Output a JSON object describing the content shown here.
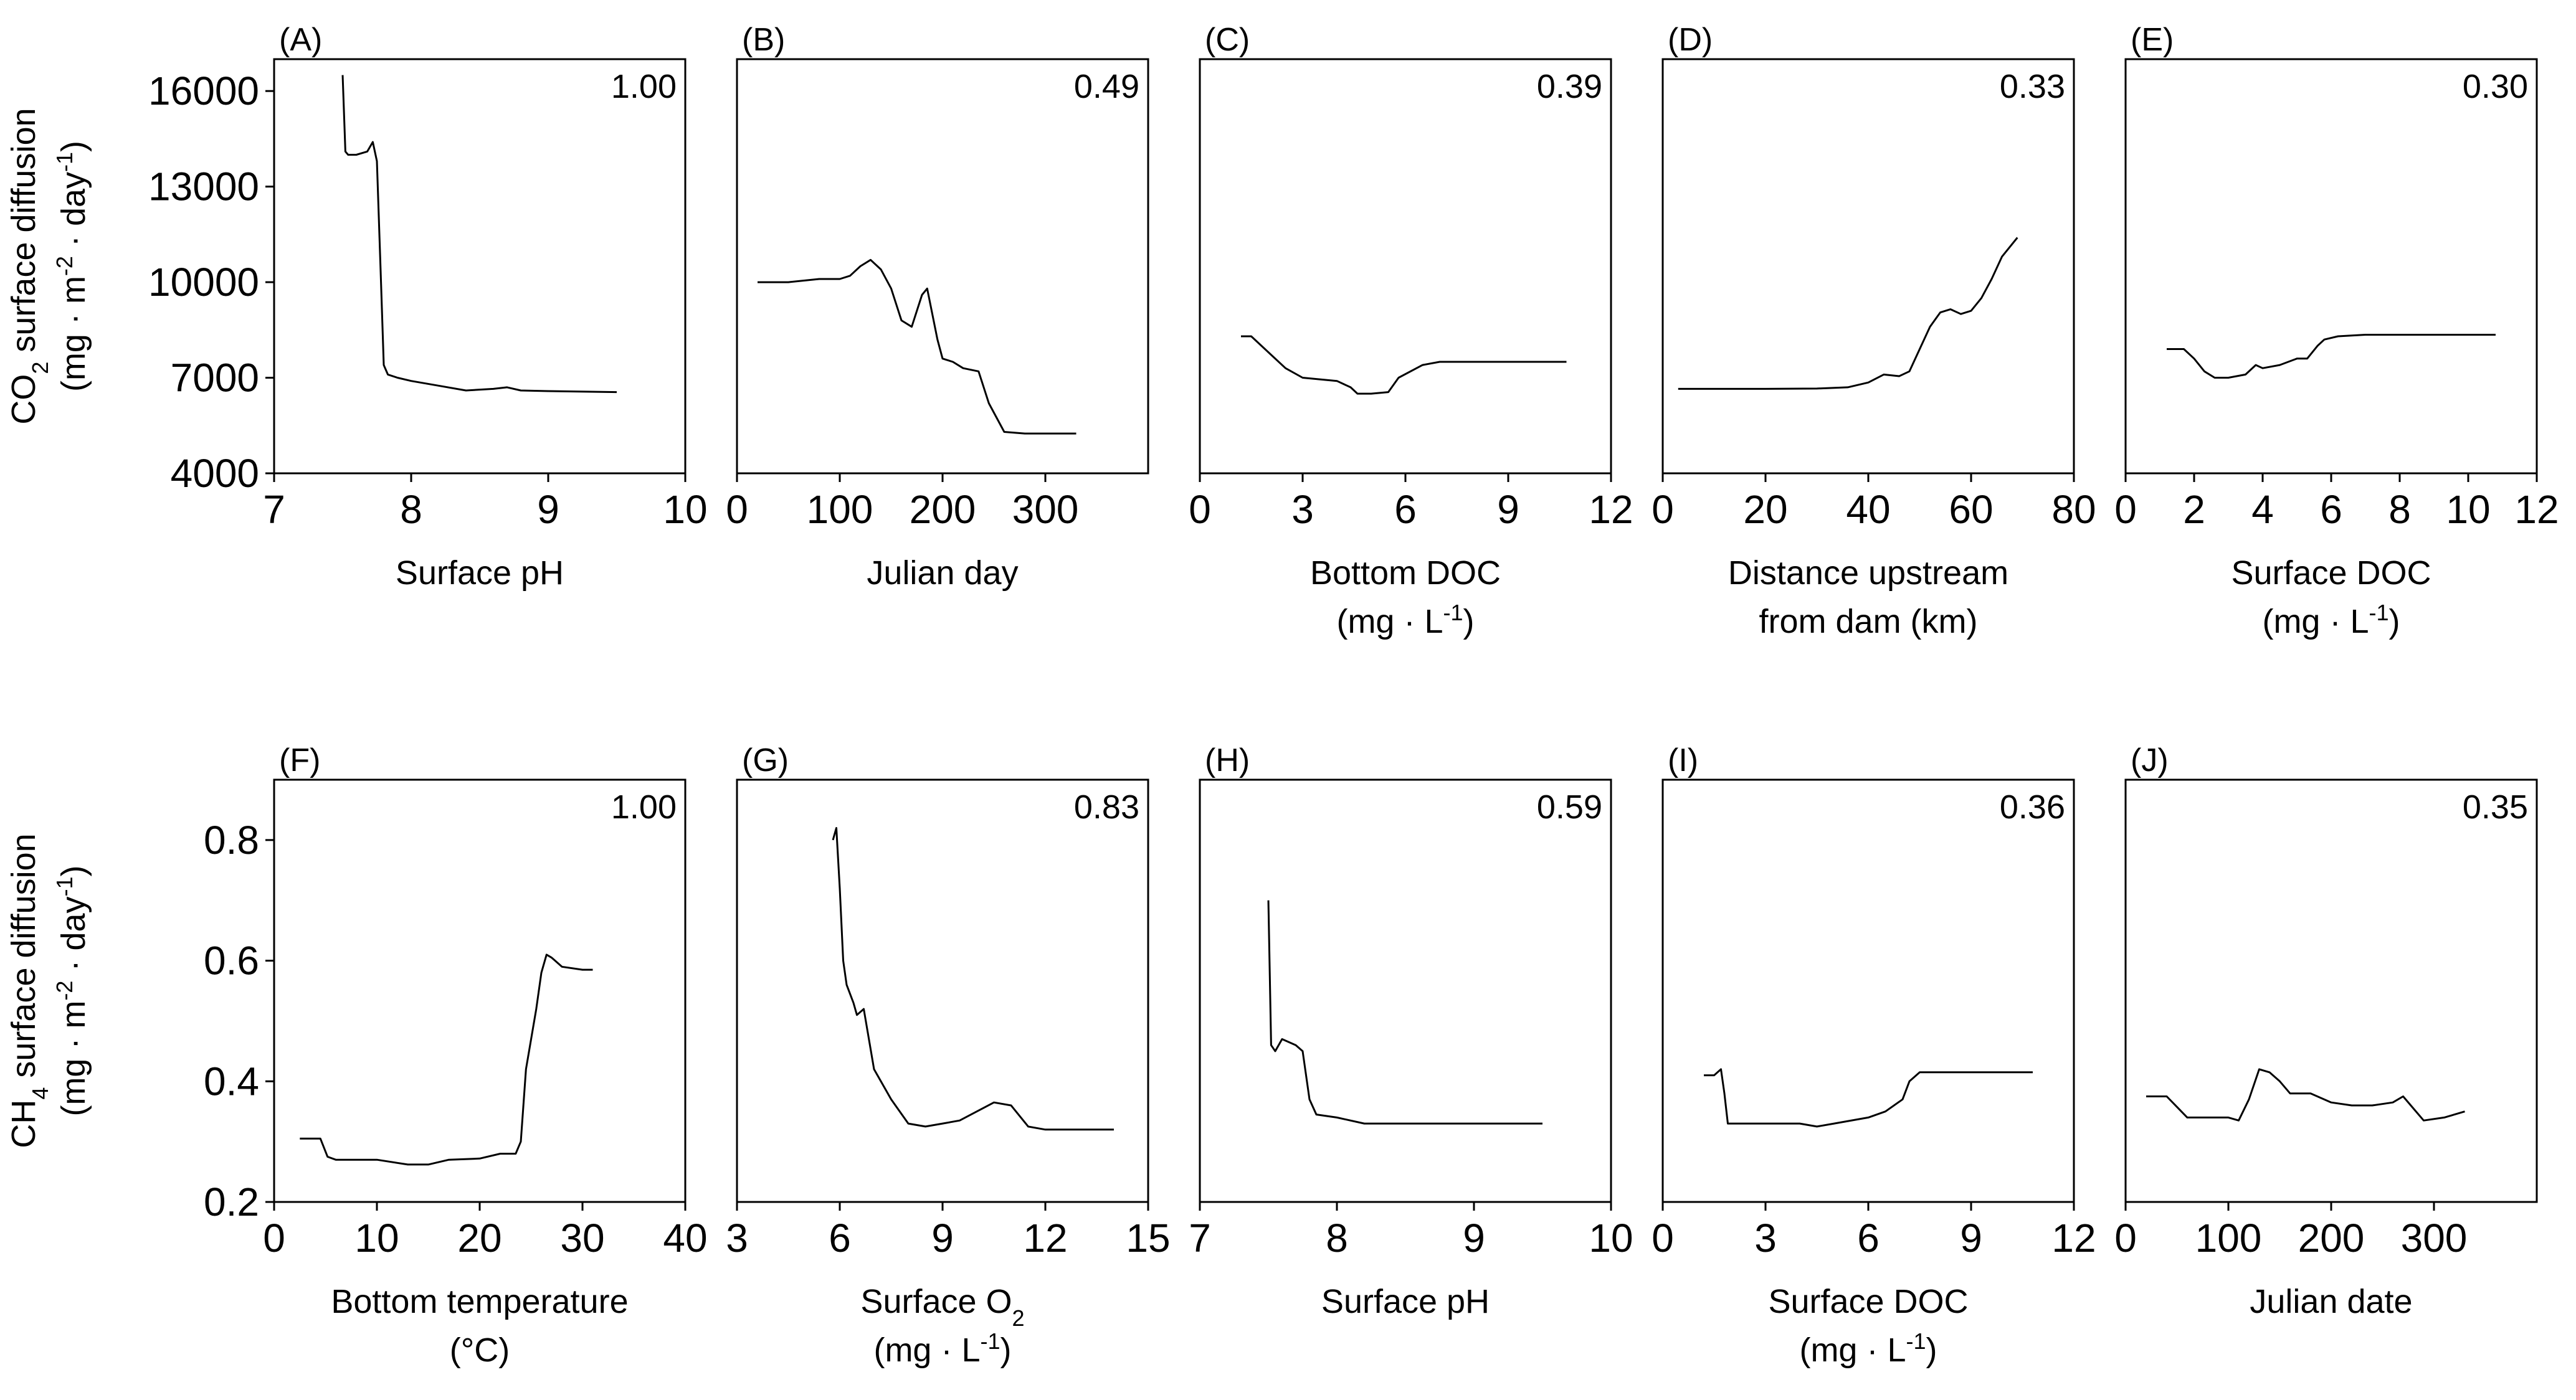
{
  "chart_data": [
    {
      "id": "A",
      "type": "line",
      "panel_label": "(A)",
      "score": "1.00",
      "xlabel": [
        "Surface pH"
      ],
      "ylabel": [
        "CO2 surface diffusion",
        "(mg · m-2 · day-1)"
      ],
      "xlim": [
        7,
        10
      ],
      "ylim": [
        4000,
        17000
      ],
      "xticks": [
        7,
        8,
        9,
        10
      ],
      "xtick_labels": [
        "7",
        "8",
        "9",
        "10"
      ],
      "yticks": [
        4000,
        7000,
        10000,
        13000,
        16000
      ],
      "ytick_labels": [
        "4000",
        "7000",
        "10000",
        "13000",
        "16000"
      ],
      "x": [
        7.5,
        7.52,
        7.54,
        7.6,
        7.68,
        7.72,
        7.75,
        7.78,
        7.8,
        7.83,
        7.9,
        8.0,
        8.2,
        8.4,
        8.6,
        8.7,
        8.8,
        9.0,
        9.5
      ],
      "y": [
        16500,
        14100,
        14000,
        14000,
        14100,
        14400,
        13800,
        10000,
        7400,
        7100,
        7000,
        6900,
        6750,
        6600,
        6650,
        6700,
        6600,
        6580,
        6550
      ]
    },
    {
      "id": "B",
      "type": "line",
      "panel_label": "(B)",
      "score": "0.49",
      "xlabel": [
        "Julian day"
      ],
      "ylabel": [],
      "xlim": [
        0,
        400
      ],
      "ylim": [
        4000,
        17000
      ],
      "xticks": [
        0,
        100,
        200,
        300
      ],
      "xtick_labels": [
        "0",
        "100",
        "200",
        "300"
      ],
      "yticks": [],
      "ytick_labels": [],
      "x": [
        20,
        50,
        80,
        100,
        110,
        120,
        130,
        140,
        150,
        160,
        170,
        180,
        185,
        195,
        200,
        210,
        220,
        235,
        245,
        260,
        280,
        330
      ],
      "y": [
        10000,
        10000,
        10100,
        10100,
        10200,
        10500,
        10700,
        10400,
        9800,
        8800,
        8600,
        9600,
        9800,
        8200,
        7600,
        7500,
        7300,
        7200,
        6200,
        5300,
        5250,
        5250
      ]
    },
    {
      "id": "C",
      "type": "line",
      "panel_label": "(C)",
      "score": "0.39",
      "xlabel": [
        "Bottom DOC",
        "(mg · L-1)"
      ],
      "ylabel": [],
      "xlim": [
        0,
        12
      ],
      "ylim": [
        4000,
        17000
      ],
      "xticks": [
        0,
        3,
        6,
        9,
        12
      ],
      "xtick_labels": [
        "0",
        "3",
        "6",
        "9",
        "12"
      ],
      "yticks": [],
      "ytick_labels": [],
      "x": [
        1.2,
        1.5,
        2.0,
        2.5,
        3.0,
        3.5,
        4.0,
        4.4,
        4.6,
        5.0,
        5.5,
        5.8,
        6.5,
        7.0,
        8.0,
        9.0,
        10.7
      ],
      "y": [
        8300,
        8300,
        7800,
        7300,
        7000,
        6950,
        6900,
        6700,
        6500,
        6500,
        6550,
        7000,
        7400,
        7500,
        7500,
        7500,
        7500
      ]
    },
    {
      "id": "D",
      "type": "line",
      "panel_label": "(D)",
      "score": "0.33",
      "xlabel": [
        "Distance upstream",
        "from dam (km)"
      ],
      "ylabel": [],
      "xlim": [
        0,
        80
      ],
      "ylim": [
        4000,
        17000
      ],
      "xticks": [
        0,
        20,
        40,
        60,
        80
      ],
      "xtick_labels": [
        "0",
        "20",
        "40",
        "60",
        "80"
      ],
      "yticks": [],
      "ytick_labels": [],
      "x": [
        3,
        10,
        20,
        30,
        36,
        40,
        43,
        46,
        48,
        50,
        52,
        54,
        56,
        58,
        60,
        62,
        64,
        66,
        69
      ],
      "y": [
        6650,
        6650,
        6650,
        6660,
        6700,
        6850,
        7100,
        7050,
        7200,
        7900,
        8600,
        9050,
        9150,
        9000,
        9100,
        9500,
        10100,
        10800,
        11400
      ]
    },
    {
      "id": "E",
      "type": "line",
      "panel_label": "(E)",
      "score": "0.30",
      "xlabel": [
        "Surface DOC",
        "(mg · L-1)"
      ],
      "ylabel": [],
      "xlim": [
        0,
        12
      ],
      "ylim": [
        4000,
        17000
      ],
      "xticks": [
        0,
        2,
        4,
        6,
        8,
        10,
        12
      ],
      "xtick_labels": [
        "0",
        "2",
        "4",
        "6",
        "8",
        "10",
        "12"
      ],
      "yticks": [],
      "ytick_labels": [],
      "x": [
        1.2,
        1.7,
        2.0,
        2.3,
        2.6,
        3.0,
        3.5,
        3.8,
        4.0,
        4.5,
        5.0,
        5.3,
        5.6,
        5.8,
        6.2,
        7.0,
        8.0,
        9.0,
        10.8
      ],
      "y": [
        7900,
        7900,
        7600,
        7200,
        7000,
        7000,
        7100,
        7400,
        7300,
        7400,
        7600,
        7600,
        8000,
        8200,
        8300,
        8350,
        8350,
        8350,
        8350
      ]
    },
    {
      "id": "F",
      "type": "line",
      "panel_label": "(F)",
      "score": "1.00",
      "xlabel": [
        "Bottom temperature",
        "(°C)"
      ],
      "ylabel": [
        "CH4 surface diffusion",
        "(mg · m-2 · day-1)"
      ],
      "xlim": [
        0,
        40
      ],
      "ylim": [
        0.2,
        0.9
      ],
      "xticks": [
        0,
        10,
        20,
        30,
        40
      ],
      "xtick_labels": [
        "0",
        "10",
        "20",
        "30",
        "40"
      ],
      "yticks": [
        0.2,
        0.4,
        0.6,
        0.8
      ],
      "ytick_labels": [
        "0.2",
        "0.4",
        "0.6",
        "0.8"
      ],
      "x": [
        2.5,
        4.5,
        5.2,
        6,
        10,
        13,
        15,
        17,
        20,
        22,
        23.5,
        24,
        24.5,
        25.5,
        26,
        26.5,
        27,
        28,
        30,
        31
      ],
      "y": [
        0.305,
        0.305,
        0.275,
        0.27,
        0.27,
        0.262,
        0.262,
        0.27,
        0.272,
        0.28,
        0.28,
        0.3,
        0.42,
        0.52,
        0.58,
        0.61,
        0.605,
        0.59,
        0.585,
        0.585
      ]
    },
    {
      "id": "G",
      "type": "line",
      "panel_label": "(G)",
      "score": "0.83",
      "xlabel": [
        "Surface O2",
        "(mg · L-1)"
      ],
      "ylabel": [],
      "xlim": [
        3,
        15
      ],
      "ylim": [
        0.2,
        0.9
      ],
      "xticks": [
        3,
        6,
        9,
        12,
        15
      ],
      "xtick_labels": [
        "3",
        "6",
        "9",
        "12",
        "15"
      ],
      "yticks": [],
      "ytick_labels": [],
      "x": [
        5.8,
        5.9,
        6.0,
        6.1,
        6.2,
        6.4,
        6.5,
        6.7,
        7.0,
        7.5,
        8.0,
        8.5,
        9.0,
        9.5,
        10.0,
        10.5,
        11.0,
        11.5,
        12.0,
        14.0
      ],
      "y": [
        0.8,
        0.82,
        0.72,
        0.6,
        0.56,
        0.53,
        0.51,
        0.52,
        0.42,
        0.37,
        0.33,
        0.325,
        0.33,
        0.335,
        0.35,
        0.365,
        0.36,
        0.325,
        0.32,
        0.32
      ]
    },
    {
      "id": "H",
      "type": "line",
      "panel_label": "(H)",
      "score": "0.59",
      "xlabel": [
        "Surface pH"
      ],
      "ylabel": [],
      "xlim": [
        7,
        10
      ],
      "ylim": [
        0.2,
        0.9
      ],
      "xticks": [
        7,
        8,
        9,
        10
      ],
      "xtick_labels": [
        "7",
        "8",
        "9",
        "10"
      ],
      "yticks": [],
      "ytick_labels": [],
      "x": [
        7.5,
        7.52,
        7.55,
        7.6,
        7.7,
        7.75,
        7.8,
        7.85,
        8.0,
        8.2,
        8.5,
        9.0,
        9.5
      ],
      "y": [
        0.7,
        0.46,
        0.45,
        0.47,
        0.46,
        0.45,
        0.37,
        0.345,
        0.34,
        0.33,
        0.33,
        0.33,
        0.33
      ]
    },
    {
      "id": "I",
      "type": "line",
      "panel_label": "(I)",
      "score": "0.36",
      "xlabel": [
        "Surface DOC",
        "(mg · L-1)"
      ],
      "ylabel": [],
      "xlim": [
        0,
        12
      ],
      "ylim": [
        0.2,
        0.9
      ],
      "xticks": [
        0,
        3,
        6,
        9,
        12
      ],
      "xtick_labels": [
        "0",
        "3",
        "6",
        "9",
        "12"
      ],
      "yticks": [],
      "ytick_labels": [],
      "x": [
        1.2,
        1.5,
        1.7,
        1.8,
        1.9,
        2.2,
        3.0,
        4.0,
        4.5,
        5.0,
        6.0,
        6.5,
        7.0,
        7.2,
        7.5,
        8.0,
        10.8
      ],
      "y": [
        0.41,
        0.41,
        0.42,
        0.38,
        0.33,
        0.33,
        0.33,
        0.33,
        0.325,
        0.33,
        0.34,
        0.35,
        0.37,
        0.4,
        0.415,
        0.415,
        0.415
      ]
    },
    {
      "id": "J",
      "type": "line",
      "panel_label": "(J)",
      "score": "0.35",
      "xlabel": [
        "Julian date"
      ],
      "ylabel": [],
      "xlim": [
        0,
        400
      ],
      "ylim": [
        0.2,
        0.9
      ],
      "xticks": [
        0,
        100,
        200,
        300
      ],
      "xtick_labels": [
        "0",
        "100",
        "200",
        "300"
      ],
      "yticks": [],
      "ytick_labels": [],
      "x": [
        20,
        40,
        60,
        80,
        100,
        110,
        120,
        130,
        140,
        150,
        160,
        180,
        200,
        220,
        240,
        260,
        270,
        280,
        290,
        310,
        330
      ],
      "y": [
        0.375,
        0.375,
        0.34,
        0.34,
        0.34,
        0.335,
        0.37,
        0.42,
        0.415,
        0.4,
        0.38,
        0.38,
        0.365,
        0.36,
        0.36,
        0.365,
        0.375,
        0.355,
        0.335,
        0.34,
        0.35
      ]
    }
  ]
}
